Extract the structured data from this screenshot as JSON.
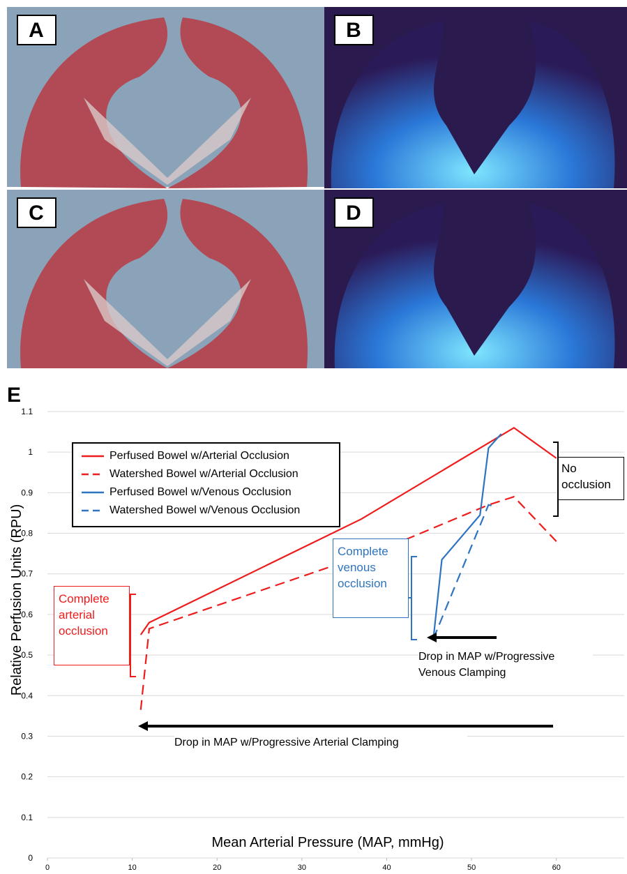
{
  "panels": [
    {
      "label": "A"
    },
    {
      "label": "B"
    },
    {
      "label": "C"
    },
    {
      "label": "D"
    }
  ],
  "chart_data": {
    "type": "line",
    "label": "E",
    "x_label": "Mean Arterial Pressure (MAP, mmHg)",
    "y_label": "Relative Perfusion Units (RPU)",
    "xlim": [
      0,
      68
    ],
    "ylim": [
      0,
      1.1
    ],
    "xticks": [
      0,
      10,
      20,
      30,
      40,
      50,
      60
    ],
    "yticks": [
      0,
      0.1,
      0.2,
      0.3,
      0.4,
      0.5,
      0.6,
      0.7,
      0.8,
      0.9,
      1,
      1.1
    ],
    "grid": true,
    "series": [
      {
        "name": "Perfused Bowel w/Arterial Occlusion",
        "color": "#ee1c1c",
        "dash": false,
        "x": [
          11,
          12,
          37,
          55,
          60
        ],
        "values": [
          0.55,
          0.58,
          0.835,
          1.06,
          0.985
        ]
      },
      {
        "name": "Watershed Bowel w/Arterial Occlusion",
        "color": "#ee1c1c",
        "dash": true,
        "x": [
          11,
          12,
          40,
          52,
          55,
          60
        ],
        "values": [
          0.365,
          0.565,
          0.765,
          0.87,
          0.89,
          0.78
        ]
      },
      {
        "name": "Perfused Bowel w/Venous Occlusion",
        "color": "#2e74c0",
        "dash": false,
        "x": [
          45.5,
          46.5,
          51,
          52,
          53.5
        ],
        "values": [
          0.54,
          0.735,
          0.845,
          1.01,
          1.045
        ]
      },
      {
        "name": "Watershed Bowel w/Venous Occlusion",
        "color": "#2e74c0",
        "dash": true,
        "x": [
          45.5,
          52,
          53
        ],
        "values": [
          0.54,
          0.87,
          0.865
        ]
      }
    ],
    "annotations": {
      "no_occlusion": "No occlusion",
      "venous": "Complete venous occlusion",
      "arterial": "Complete arterial occlusion",
      "venous_drop": "Drop in MAP w/Progressive Venous Clamping",
      "arterial_drop": "Drop in MAP w/Progressive Arterial Clamping"
    }
  }
}
